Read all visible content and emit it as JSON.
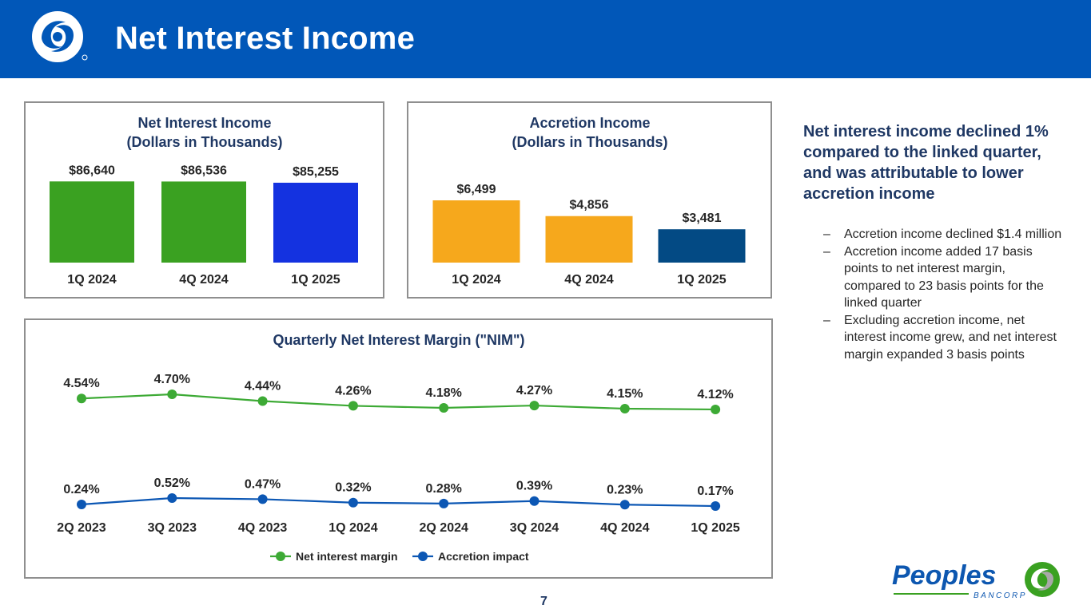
{
  "header": {
    "title": "Net Interest Income",
    "logo_icon": "peoples-swirl-logo-icon"
  },
  "colors": {
    "header_bg": "#0157b8",
    "green": "#3aa121",
    "blue_bar": "#1432e0",
    "gold": "#f6a81c",
    "navy": "#034a84",
    "nim_line": "#3daa35",
    "accretion_line": "#0c57b4",
    "title_text": "#1f3864"
  },
  "chart_data": [
    {
      "id": "nii",
      "type": "bar",
      "title": "Net Interest Income",
      "subtitle": "(Dollars in Thousands)",
      "categories": [
        "1Q 2024",
        "4Q 2024",
        "1Q 2025"
      ],
      "values": [
        86640,
        86536,
        85255
      ],
      "labels": [
        "$86,640",
        "$86,536",
        "$85,255"
      ],
      "bar_colors": [
        "#3aa121",
        "#3aa121",
        "#1432e0"
      ],
      "ylim": [
        0,
        92000
      ]
    },
    {
      "id": "accretion",
      "type": "bar",
      "title": "Accretion Income",
      "subtitle": "(Dollars in Thousands)",
      "categories": [
        "1Q 2024",
        "4Q 2024",
        "1Q 2025"
      ],
      "values": [
        6499,
        4856,
        3481
      ],
      "labels": [
        "$6,499",
        "$4,856",
        "$3,481"
      ],
      "bar_colors": [
        "#f6a81c",
        "#f6a81c",
        "#034a84"
      ],
      "ylim": [
        0,
        8000
      ]
    },
    {
      "id": "nim",
      "type": "line",
      "title": "Quarterly Net Interest Margin (\"NIM\")",
      "categories": [
        "2Q 2023",
        "3Q 2023",
        "4Q 2023",
        "1Q 2024",
        "2Q 2024",
        "3Q 2024",
        "4Q 2024",
        "1Q 2025"
      ],
      "series": [
        {
          "name": "Net interest margin",
          "color": "#3daa35",
          "values": [
            4.54,
            4.7,
            4.44,
            4.26,
            4.18,
            4.27,
            4.15,
            4.12
          ],
          "labels": [
            "4.54%",
            "4.70%",
            "4.44%",
            "4.26%",
            "4.18%",
            "4.27%",
            "4.15%",
            "4.12%"
          ]
        },
        {
          "name": "Accretion impact",
          "color": "#0c57b4",
          "values": [
            0.24,
            0.52,
            0.47,
            0.32,
            0.28,
            0.39,
            0.23,
            0.17
          ],
          "labels": [
            "0.24%",
            "0.52%",
            "0.47%",
            "0.32%",
            "0.28%",
            "0.39%",
            "0.23%",
            "0.17%"
          ]
        }
      ],
      "legend_position": "bottom-center"
    }
  ],
  "commentary": {
    "heading": "Net interest income declined 1% compared to the linked quarter, and was attributable to lower accretion income",
    "bullet_marker": "–",
    "bullets": [
      "Accretion income declined $1.4 million",
      "Accretion income added 17 basis points to net interest margin, compared to 23 basis points for the linked quarter",
      "Excluding accretion income, net interest income grew, and net interest margin expanded 3 basis points"
    ]
  },
  "footer": {
    "page_number": "7",
    "brand_name": "Peoples",
    "brand_sub": "BANCORP",
    "brand_icon": "peoples-swirl-logo-icon"
  }
}
